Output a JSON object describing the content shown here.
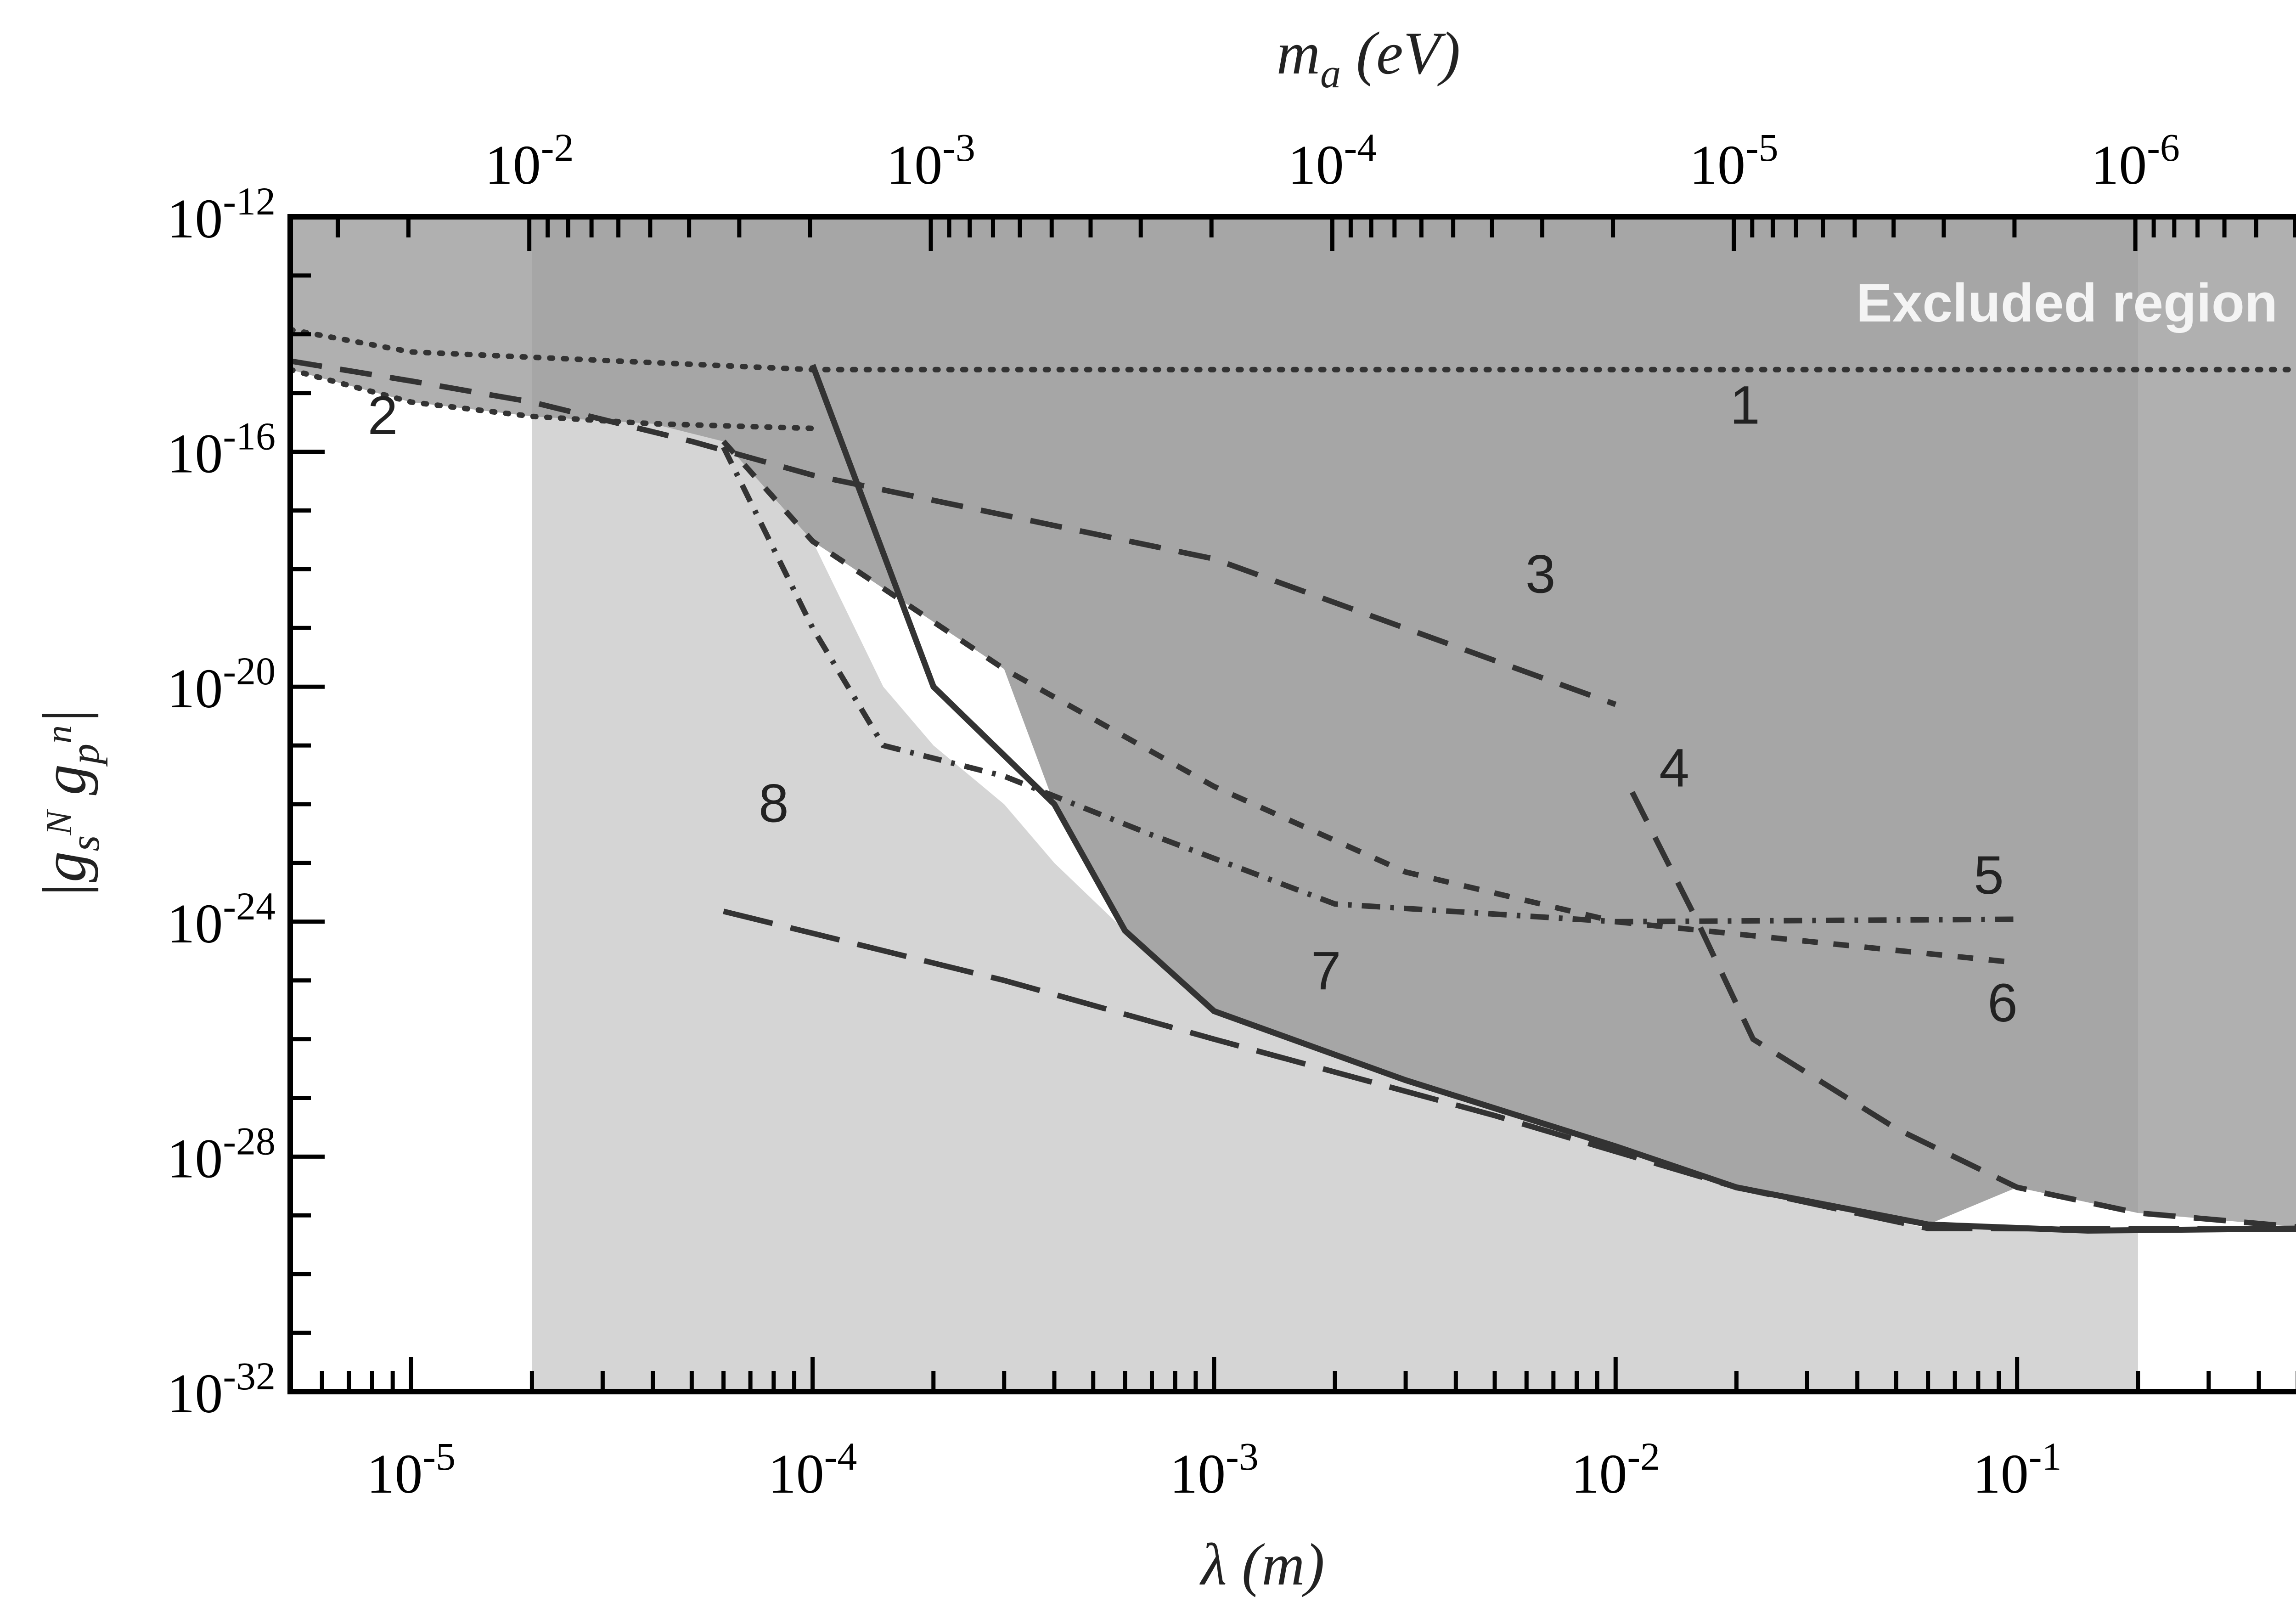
{
  "chart_data": {
    "type": "line",
    "title": "",
    "xlabel": "λ (m)",
    "x2label": "m_a (eV)",
    "ylabel": "|g_s^N g_p^n|",
    "xscale": "log",
    "yscale": "log",
    "xlim": [
      5e-06,
      0.55
    ],
    "ylim": [
      1e-32,
      1e-12
    ],
    "x_ticks": [
      {
        "label": "10^-5",
        "value": 1e-05
      },
      {
        "label": "10^-4",
        "value": 0.0001
      },
      {
        "label": "10^-3",
        "value": 0.001
      },
      {
        "label": "10^-2",
        "value": 0.01
      },
      {
        "label": "10^-1",
        "value": 0.1
      }
    ],
    "top_ticks": [
      {
        "label": "10^-2",
        "value": 0.01
      },
      {
        "label": "10^-3",
        "value": 0.001
      },
      {
        "label": "10^-4",
        "value": 0.0001
      },
      {
        "label": "10^-5",
        "value": 1e-05
      },
      {
        "label": "10^-6",
        "value": 1e-06
      }
    ],
    "y_ticks": [
      {
        "label": "10^-12",
        "value": 1e-12
      },
      {
        "label": "10^-16",
        "value": 1e-16
      },
      {
        "label": "10^-20",
        "value": 1e-20
      },
      {
        "label": "10^-24",
        "value": 1e-24
      },
      {
        "label": "10^-28",
        "value": 1e-28
      },
      {
        "label": "10^-32",
        "value": 1e-32
      }
    ],
    "excluded_label": "Excluded region",
    "colors": {
      "excluded_outer": "#b0b0b0",
      "excluded_inner": "#a6a6a6",
      "projected": "#d5d5d5",
      "curve": "#333333"
    },
    "series": [
      {
        "name": "1",
        "style": "dotted",
        "label_at": {
          "x": 0.021,
          "y": 3e-16
        },
        "points": [
          [
            5e-06,
            1.2e-14
          ],
          [
            1e-05,
            5e-15
          ],
          [
            0.0001,
            2.5e-15
          ],
          [
            0.01,
            2.5e-15
          ],
          [
            0.55,
            2.5e-15
          ]
        ]
      },
      {
        "name": "2",
        "style": "dotted",
        "label_at": {
          "x": 8.5e-06,
          "y": 2e-16
        },
        "points": [
          [
            5e-06,
            2.5e-15
          ],
          [
            1e-05,
            7e-16
          ],
          [
            2e-05,
            4e-16
          ],
          [
            4e-05,
            3e-16
          ],
          [
            0.0001,
            2.5e-16
          ]
        ]
      },
      {
        "name": "3",
        "style": "dashed",
        "label_at": {
          "x": 0.0065,
          "y": 4e-19
        },
        "points": [
          [
            5e-06,
            3.5e-15
          ],
          [
            1e-05,
            1.6e-15
          ],
          [
            2e-05,
            7e-16
          ],
          [
            5e-05,
            1.5e-16
          ],
          [
            0.0001,
            4e-17
          ],
          [
            0.001,
            1.5e-18
          ],
          [
            0.01,
            5e-21
          ]
        ]
      },
      {
        "name": "4",
        "style": "dashed",
        "label_at": {
          "x": 0.014,
          "y": 2e-22
        },
        "points": [
          [
            0.011,
            1.6e-22
          ],
          [
            0.016,
            1e-24
          ],
          [
            0.022,
            1e-26
          ],
          [
            0.05,
            3e-28
          ],
          [
            0.1,
            3e-29
          ],
          [
            0.2,
            1.1e-29
          ],
          [
            0.55,
            6e-30
          ]
        ]
      },
      {
        "name": "5",
        "style": "dashdot",
        "label_at": {
          "x": 0.085,
          "y": 3e-24
        },
        "points": [
          [
            6e-05,
            1.2e-16
          ],
          [
            0.0001,
            1e-19
          ],
          [
            0.00015,
            1e-21
          ],
          [
            0.0003,
            3e-22
          ],
          [
            0.0007,
            3e-23
          ],
          [
            0.002,
            2e-24
          ],
          [
            0.01,
            1e-24
          ],
          [
            0.1,
            1.1e-24
          ]
        ]
      },
      {
        "name": "6",
        "style": "dashed-short",
        "label_at": {
          "x": 0.092,
          "y": 2e-26
        },
        "points": [
          [
            6e-05,
            1.5e-16
          ],
          [
            0.0001,
            3e-18
          ],
          [
            0.0003,
            2e-20
          ],
          [
            0.001,
            2e-22
          ],
          [
            0.003,
            7e-24
          ],
          [
            0.01,
            1e-24
          ],
          [
            0.1,
            2e-25
          ]
        ]
      },
      {
        "name": "7",
        "style": "solid",
        "label_at": {
          "x": 0.0019,
          "y": 7e-26
        },
        "points": [
          [
            0.0001,
            3e-15
          ],
          [
            0.0002,
            1e-20
          ],
          [
            0.0004,
            1e-22
          ],
          [
            0.0006,
            7e-25
          ],
          [
            0.001,
            3e-26
          ],
          [
            0.003,
            2e-27
          ],
          [
            0.01,
            1.5e-28
          ],
          [
            0.02,
            3e-29
          ],
          [
            0.06,
            7e-30
          ],
          [
            0.15,
            5.5e-30
          ],
          [
            0.55,
            6e-30
          ]
        ]
      },
      {
        "name": "8",
        "style": "longdash",
        "label_at": {
          "x": 8e-05,
          "y": 5e-23
        },
        "points": [
          [
            6e-05,
            1.5e-24
          ],
          [
            0.0003,
            1e-25
          ],
          [
            0.001,
            1e-26
          ],
          [
            0.005,
            5e-28
          ],
          [
            0.02,
            3e-29
          ],
          [
            0.06,
            6e-30
          ],
          [
            0.55,
            5.8e-30
          ]
        ]
      }
    ]
  }
}
